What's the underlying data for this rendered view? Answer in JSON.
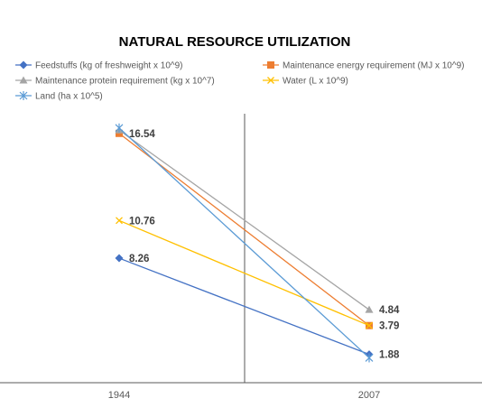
{
  "chart_data": {
    "type": "line",
    "title": "NATURAL RESOURCE UTILIZATION",
    "categories": [
      "1944",
      "2007"
    ],
    "series": [
      {
        "name": "Feedstuffs (kg of freshweight x 10^9)",
        "values": [
          8.26,
          1.88
        ],
        "color": "#4472C4",
        "marker": "diamond"
      },
      {
        "name": "Maintenance energy requirement (MJ x 10^9)",
        "values": [
          16.54,
          3.79
        ],
        "color": "#ED7D31",
        "marker": "square"
      },
      {
        "name": "Maintenance protein requirement (kg x 10^7)",
        "values": [
          16.75,
          4.84
        ],
        "color": "#A5A5A5",
        "marker": "triangle"
      },
      {
        "name": "Water (L x 10^9)",
        "values": [
          10.76,
          3.79
        ],
        "color": "#FFC000",
        "marker": "x"
      },
      {
        "name": "Land (ha x 10^5)",
        "values": [
          16.9,
          1.65
        ],
        "color": "#5B9BD5",
        "marker": "star"
      }
    ],
    "data_labels": [
      {
        "text": "16.54",
        "series": 1,
        "point": 0
      },
      {
        "text": "10.76",
        "series": 3,
        "point": 0
      },
      {
        "text": "8.26",
        "series": 0,
        "point": 0
      },
      {
        "text": "4.84",
        "series": 2,
        "point": 1
      },
      {
        "text": "3.79",
        "series": 1,
        "point": 1
      },
      {
        "text": "1.88",
        "series": 0,
        "point": 1
      }
    ],
    "ylim": [
      0,
      18.5
    ],
    "legend_position": "top",
    "grid": false,
    "xlabel": "",
    "ylabel": ""
  }
}
